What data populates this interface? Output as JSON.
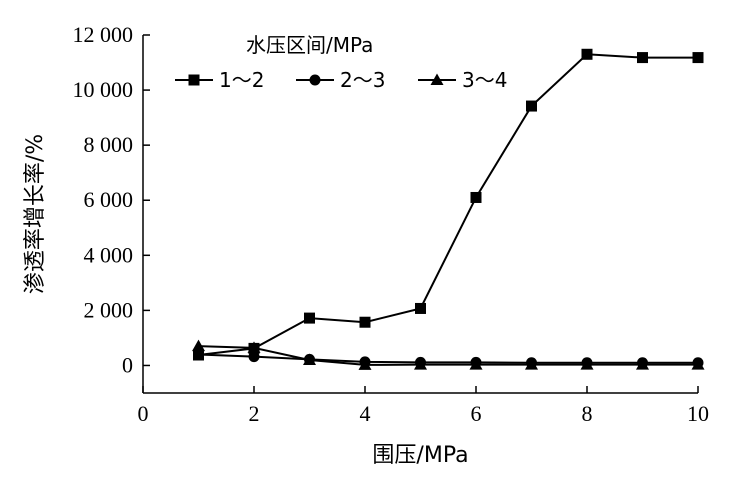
{
  "chart_data": {
    "type": "line",
    "title": "",
    "xlabel": "围压/MPa",
    "ylabel": "渗透率增长率/%",
    "xlim": [
      0,
      10
    ],
    "ylim": [
      -1000,
      12000
    ],
    "xticks": [
      0,
      2,
      4,
      6,
      8,
      10
    ],
    "yticks": [
      0,
      2000,
      4000,
      6000,
      8000,
      10000,
      12000
    ],
    "xtick_labels": [
      "0",
      "2",
      "4",
      "6",
      "8",
      "10"
    ],
    "ytick_labels": [
      "0",
      "2 000",
      "4 000",
      "6 000",
      "8 000",
      "10 000",
      "12 000"
    ],
    "grid": false,
    "legend": {
      "title": "水压区间/MPa",
      "placement": "top-left",
      "entries": [
        "1～2",
        "2～3",
        "3～4"
      ]
    },
    "x": [
      1,
      2,
      3,
      4,
      5,
      6,
      7,
      8,
      9,
      10
    ],
    "series": [
      {
        "name": "1～2",
        "marker": "square",
        "values": [
          380,
          620,
          1720,
          1570,
          2070,
          6100,
          9420,
          11300,
          11180,
          11180
        ]
      },
      {
        "name": "2～3",
        "marker": "circle",
        "values": [
          400,
          320,
          220,
          130,
          110,
          110,
          100,
          100,
          100,
          100
        ]
      },
      {
        "name": "3～4",
        "marker": "triangle",
        "values": [
          700,
          640,
          200,
          20,
          30,
          30,
          30,
          30,
          30,
          30
        ]
      }
    ]
  }
}
